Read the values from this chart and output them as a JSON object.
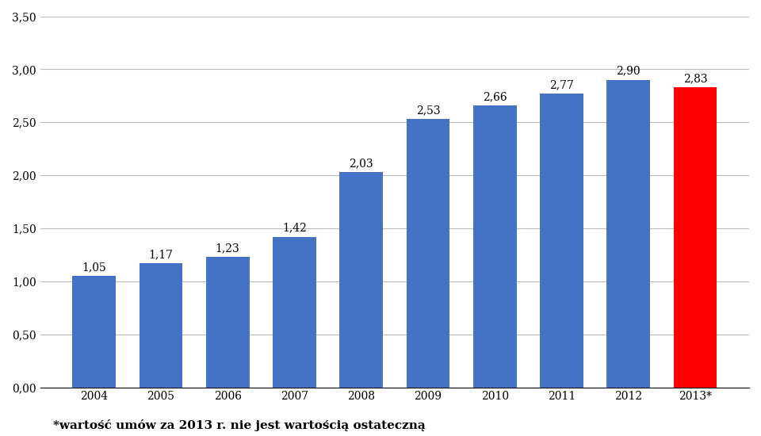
{
  "categories": [
    "2004",
    "2005",
    "2006",
    "2007",
    "2008",
    "2009",
    "2010",
    "2011",
    "2012",
    "2013*"
  ],
  "values": [
    1.05,
    1.17,
    1.23,
    1.42,
    2.03,
    2.53,
    2.66,
    2.77,
    2.9,
    2.83
  ],
  "bar_colors": [
    "#4472C4",
    "#4472C4",
    "#4472C4",
    "#4472C4",
    "#4472C4",
    "#4472C4",
    "#4472C4",
    "#4472C4",
    "#4472C4",
    "#FF0000"
  ],
  "ylim": [
    0,
    3.5
  ],
  "yticks": [
    0.0,
    0.5,
    1.0,
    1.5,
    2.0,
    2.5,
    3.0,
    3.5
  ],
  "ytick_labels": [
    "0,00",
    "0,50",
    "1,00",
    "1,50",
    "2,00",
    "2,50",
    "3,00",
    "3,50"
  ],
  "value_labels": [
    "1,05",
    "1,17",
    "1,23",
    "1,42",
    "2,03",
    "2,53",
    "2,66",
    "2,77",
    "2,90",
    "2,83"
  ],
  "footnote": "*wartość umów za 2013 r. nie jest wartością ostateczną",
  "background_color": "#FFFFFF",
  "grid_color": "#BBBBBB",
  "label_fontsize": 10,
  "tick_fontsize": 10,
  "footnote_fontsize": 11
}
